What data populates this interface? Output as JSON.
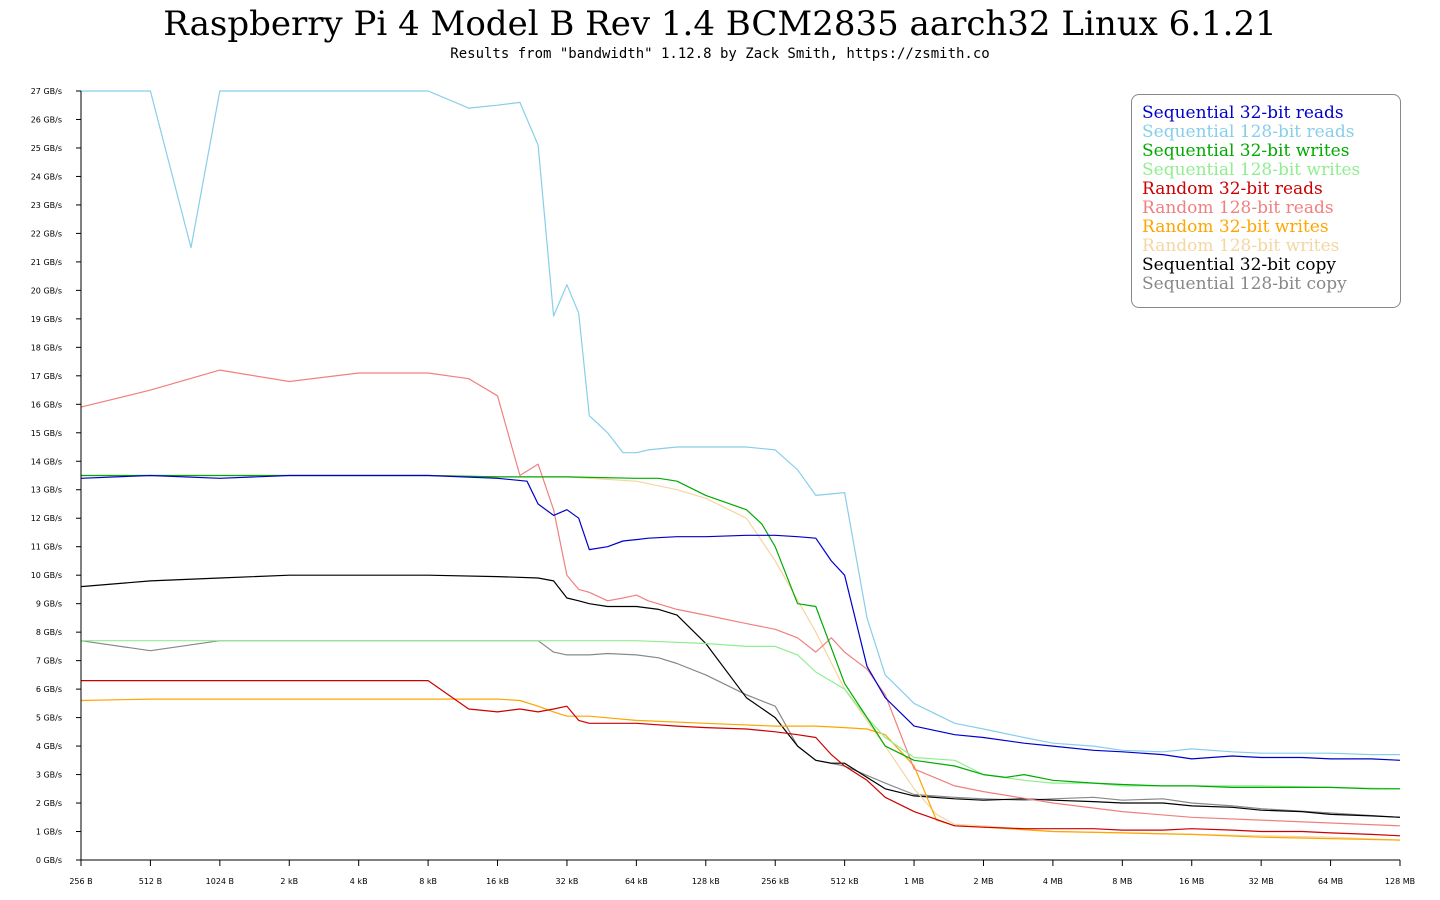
{
  "title": "Raspberry Pi 4 Model B Rev 1.4 BCM2835 aarch32 Linux 6.1.21",
  "subtitle": "Results from \"bandwidth\" 1.12.8 by Zack Smith, https://zsmith.co",
  "chart_data": {
    "type": "line",
    "title": "Raspberry Pi 4 Model B Rev 1.4 BCM2835 aarch32 Linux 6.1.21",
    "subtitle": "Results from \"bandwidth\" 1.12.8 by Zack Smith, https://zsmith.co",
    "xlabel": "",
    "ylabel": "",
    "x_scale": "log2",
    "x_unit": "bytes",
    "y_unit": "GB/s",
    "ylim": [
      0,
      27
    ],
    "grid": false,
    "legend_position": "top-right",
    "x_tick_labels": [
      "256 B",
      "512 B",
      "1024 B",
      "2 kB",
      "4 kB",
      "8 kB",
      "16 kB",
      "32 kB",
      "64 kB",
      "128 kB",
      "256 kB",
      "512 kB",
      "1 MB",
      "2 MB",
      "4 MB",
      "8 MB",
      "16 MB",
      "32 MB",
      "64 MB",
      "128 MB"
    ],
    "y_tick_labels": [
      "0 GB/s",
      "1 GB/s",
      "2 GB/s",
      "3 GB/s",
      "4 GB/s",
      "5 GB/s",
      "6 GB/s",
      "7 GB/s",
      "8 GB/s",
      "9 GB/s",
      "10 GB/s",
      "11 GB/s",
      "12 GB/s",
      "13 GB/s",
      "14 GB/s",
      "15 GB/s",
      "16 GB/s",
      "17 GB/s",
      "18 GB/s",
      "19 GB/s",
      "20 GB/s",
      "21 GB/s",
      "22 GB/s",
      "23 GB/s",
      "24 GB/s",
      "25 GB/s",
      "26 GB/s",
      "27 GB/s"
    ],
    "x_tick_bytes": [
      256,
      512,
      1024,
      2048,
      4096,
      8192,
      16384,
      32768,
      65536,
      131072,
      262144,
      524288,
      1048576,
      2097152,
      4194304,
      8388608,
      16777216,
      33554432,
      67108864,
      134217728
    ],
    "series": [
      {
        "name": "Sequential 32-bit reads",
        "color": "#0000cc",
        "x": [
          256,
          512,
          1024,
          2048,
          4096,
          8192,
          16384,
          22000,
          24576,
          28672,
          32768,
          36864,
          40960,
          49152,
          57344,
          65536,
          73728,
          98304,
          131072,
          196608,
          262144,
          327680,
          393216,
          458752,
          524288,
          655360,
          786432,
          1048576,
          1572864,
          2097152,
          3145728,
          4194304,
          6291456,
          8388608,
          12582912,
          16777216,
          25165824,
          33554432,
          50331648,
          67108864,
          100663296,
          134217728
        ],
        "y": [
          13.4,
          13.5,
          13.4,
          13.5,
          13.5,
          13.5,
          13.4,
          13.3,
          12.5,
          12.1,
          12.3,
          12.0,
          10.9,
          11.0,
          11.2,
          11.25,
          11.3,
          11.35,
          11.35,
          11.4,
          11.4,
          11.35,
          11.3,
          10.5,
          10.0,
          6.8,
          5.7,
          4.7,
          4.4,
          4.3,
          4.1,
          4.0,
          3.85,
          3.8,
          3.7,
          3.55,
          3.65,
          3.6,
          3.6,
          3.55,
          3.55,
          3.5
        ]
      },
      {
        "name": "Sequential 128-bit reads",
        "color": "#87ceeb",
        "x": [
          256,
          512,
          768,
          1024,
          2048,
          4096,
          8192,
          12288,
          16384,
          20480,
          24576,
          28672,
          32768,
          36864,
          40960,
          49152,
          57344,
          65536,
          73728,
          98304,
          131072,
          196608,
          262144,
          327680,
          393216,
          524288,
          655360,
          786432,
          1048576,
          1572864,
          2097152,
          3145728,
          4194304,
          6291456,
          8388608,
          12582912,
          16777216,
          25165824,
          33554432,
          50331648,
          67108864,
          100663296,
          134217728
        ],
        "y": [
          27.0,
          27.0,
          21.5,
          27.0,
          27.0,
          27.0,
          27.0,
          26.4,
          26.5,
          26.6,
          25.1,
          19.1,
          20.2,
          19.2,
          15.6,
          15.0,
          14.3,
          14.3,
          14.4,
          14.5,
          14.5,
          14.5,
          14.4,
          13.7,
          12.8,
          12.9,
          8.5,
          6.5,
          5.5,
          4.8,
          4.6,
          4.3,
          4.1,
          4.0,
          3.85,
          3.8,
          3.9,
          3.8,
          3.75,
          3.75,
          3.75,
          3.7,
          3.7
        ]
      },
      {
        "name": "Sequential 32-bit writes",
        "color": "#00aa00",
        "x": [
          256,
          512,
          1024,
          2048,
          4096,
          8192,
          16384,
          32768,
          65536,
          81920,
          98304,
          131072,
          196608,
          229376,
          262144,
          327680,
          393216,
          524288,
          655360,
          786432,
          1048576,
          1572864,
          2097152,
          2621440,
          3145728,
          4194304,
          6291456,
          8388608,
          12582912,
          16777216,
          25165824,
          33554432,
          50331648,
          67108864,
          100663296,
          134217728
        ],
        "y": [
          13.5,
          13.5,
          13.5,
          13.5,
          13.5,
          13.5,
          13.45,
          13.45,
          13.4,
          13.4,
          13.3,
          12.8,
          12.3,
          11.8,
          11.0,
          9.0,
          8.9,
          6.2,
          5.0,
          4.0,
          3.5,
          3.3,
          3.0,
          2.9,
          3.0,
          2.8,
          2.7,
          2.65,
          2.6,
          2.6,
          2.55,
          2.55,
          2.55,
          2.55,
          2.5,
          2.5
        ]
      },
      {
        "name": "Sequential 128-bit writes",
        "color": "#90ee90",
        "x": [
          256,
          512,
          1024,
          2048,
          4096,
          8192,
          16384,
          32768,
          65536,
          131072,
          196608,
          262144,
          327680,
          393216,
          524288,
          655360,
          786432,
          1048576,
          1572864,
          2097152,
          3145728,
          4194304,
          6291456,
          8388608,
          16777216,
          33554432,
          67108864,
          134217728
        ],
        "y": [
          7.7,
          7.7,
          7.7,
          7.7,
          7.7,
          7.7,
          7.7,
          7.7,
          7.7,
          7.6,
          7.5,
          7.5,
          7.2,
          6.6,
          6.0,
          5.0,
          4.3,
          3.6,
          3.5,
          3.0,
          2.8,
          2.7,
          2.7,
          2.6,
          2.6,
          2.6,
          2.55,
          2.5
        ]
      },
      {
        "name": "Random 32-bit reads",
        "color": "#cc0000",
        "x": [
          256,
          512,
          1024,
          2048,
          4096,
          8192,
          12288,
          16384,
          20480,
          24576,
          28672,
          32768,
          36864,
          40960,
          49152,
          65536,
          98304,
          131072,
          196608,
          262144,
          327680,
          393216,
          458752,
          524288,
          655360,
          786432,
          1048576,
          1572864,
          2097152,
          3145728,
          4194304,
          6291456,
          8388608,
          12582912,
          16777216,
          25165824,
          33554432,
          50331648,
          67108864,
          100663296,
          134217728
        ],
        "y": [
          6.3,
          6.3,
          6.3,
          6.3,
          6.3,
          6.3,
          5.3,
          5.2,
          5.3,
          5.2,
          5.3,
          5.4,
          4.9,
          4.8,
          4.8,
          4.8,
          4.7,
          4.65,
          4.6,
          4.5,
          4.4,
          4.3,
          3.7,
          3.3,
          2.8,
          2.2,
          1.7,
          1.2,
          1.15,
          1.1,
          1.1,
          1.1,
          1.05,
          1.05,
          1.1,
          1.05,
          1.0,
          1.0,
          0.95,
          0.9,
          0.85
        ]
      },
      {
        "name": "Random 128-bit reads",
        "color": "#f08080",
        "x": [
          256,
          512,
          1024,
          2048,
          4096,
          8192,
          12288,
          16384,
          20480,
          24576,
          28672,
          32768,
          36864,
          40960,
          49152,
          57344,
          65536,
          73728,
          98304,
          131072,
          196608,
          262144,
          327680,
          393216,
          458752,
          524288,
          655360,
          786432,
          1048576,
          1572864,
          2097152,
          4194304,
          8388608,
          16777216,
          33554432,
          67108864,
          134217728
        ],
        "y": [
          15.9,
          16.5,
          17.2,
          16.8,
          17.1,
          17.1,
          16.9,
          16.3,
          13.5,
          13.9,
          12.3,
          10.0,
          9.5,
          9.4,
          9.1,
          9.2,
          9.3,
          9.1,
          8.8,
          8.6,
          8.3,
          8.1,
          7.8,
          7.3,
          7.8,
          7.3,
          6.7,
          5.8,
          3.2,
          2.6,
          2.4,
          2.0,
          1.7,
          1.5,
          1.4,
          1.3,
          1.2
        ]
      },
      {
        "name": "Random 32-bit writes",
        "color": "#ffa500",
        "x": [
          256,
          512,
          1024,
          2048,
          4096,
          8192,
          16384,
          20480,
          24576,
          28672,
          32768,
          40960,
          65536,
          131072,
          262144,
          393216,
          524288,
          655360,
          786432,
          1048576,
          1310720,
          1572864,
          2097152,
          4194304,
          8388608,
          16777216,
          33554432,
          67108864,
          134217728
        ],
        "y": [
          5.6,
          5.65,
          5.65,
          5.65,
          5.65,
          5.65,
          5.65,
          5.6,
          5.4,
          5.2,
          5.05,
          5.05,
          4.9,
          4.8,
          4.7,
          4.7,
          4.65,
          4.6,
          4.4,
          3.3,
          1.4,
          1.2,
          1.15,
          1.0,
          0.95,
          0.9,
          0.8,
          0.75,
          0.7
        ]
      },
      {
        "name": "Random 128-bit writes",
        "color": "#f5d5a0",
        "x": [
          256,
          512,
          1024,
          2048,
          4096,
          8192,
          16384,
          32768,
          65536,
          98304,
          131072,
          196608,
          262144,
          393216,
          524288,
          786432,
          1048576,
          1310720,
          1572864,
          2097152,
          4194304,
          8388608,
          16777216,
          33554432,
          67108864,
          134217728
        ],
        "y": [
          13.5,
          13.5,
          13.5,
          13.5,
          13.5,
          13.5,
          13.45,
          13.45,
          13.3,
          13.0,
          12.7,
          12.0,
          10.5,
          8.0,
          6.0,
          4.0,
          2.5,
          1.6,
          1.25,
          1.2,
          1.0,
          0.95,
          0.9,
          0.85,
          0.8,
          0.7
        ]
      },
      {
        "name": "Sequential 32-bit copy",
        "color": "#000000",
        "x": [
          256,
          512,
          1024,
          2048,
          4096,
          8192,
          16384,
          24576,
          28672,
          32768,
          36864,
          40960,
          49152,
          65536,
          81920,
          98304,
          131072,
          196608,
          262144,
          327680,
          393216,
          458752,
          524288,
          655360,
          786432,
          1048576,
          1572864,
          2097152,
          3145728,
          4194304,
          6291456,
          8388608,
          12582912,
          16777216,
          25165824,
          33554432,
          50331648,
          67108864,
          100663296,
          134217728
        ],
        "y": [
          9.6,
          9.8,
          9.9,
          10.0,
          10.0,
          10.0,
          9.95,
          9.9,
          9.8,
          9.2,
          9.1,
          9.0,
          8.9,
          8.9,
          8.8,
          8.6,
          7.6,
          5.7,
          5.0,
          4.0,
          3.5,
          3.4,
          3.4,
          2.9,
          2.5,
          2.25,
          2.15,
          2.1,
          2.15,
          2.1,
          2.05,
          2.0,
          2.0,
          1.9,
          1.85,
          1.75,
          1.7,
          1.6,
          1.55,
          1.5
        ]
      },
      {
        "name": "Sequential 128-bit copy",
        "color": "#888888",
        "x": [
          256,
          512,
          1024,
          2048,
          4096,
          8192,
          16384,
          24576,
          28672,
          32768,
          40960,
          49152,
          65536,
          81920,
          98304,
          131072,
          196608,
          262144,
          327680,
          393216,
          524288,
          786432,
          1048576,
          1572864,
          2097152,
          3145728,
          4194304,
          6291456,
          8388608,
          12582912,
          16777216,
          25165824,
          33554432,
          67108864,
          134217728
        ],
        "y": [
          7.7,
          7.35,
          7.7,
          7.7,
          7.7,
          7.7,
          7.7,
          7.7,
          7.3,
          7.2,
          7.2,
          7.25,
          7.2,
          7.1,
          6.9,
          6.5,
          5.8,
          5.4,
          4.0,
          3.5,
          3.3,
          2.7,
          2.3,
          2.2,
          2.15,
          2.1,
          2.15,
          2.2,
          2.1,
          2.15,
          2.0,
          1.9,
          1.8,
          1.65,
          1.5
        ]
      }
    ]
  }
}
